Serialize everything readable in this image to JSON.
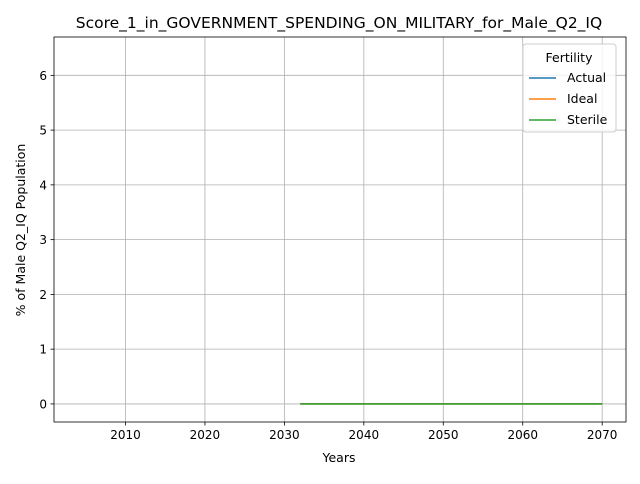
{
  "chart_data": {
    "type": "line",
    "title": "Score_1_in_GOVERNMENT_SPENDING_ON_MILITARY_for_Male_Q2_IQ",
    "xlabel": "Years",
    "ylabel": "% of Male Q2_IQ Population",
    "xlim": [
      2001,
      2073
    ],
    "ylim": [
      -0.33,
      6.7
    ],
    "xticks": [
      2010,
      2020,
      2030,
      2040,
      2050,
      2060,
      2070
    ],
    "yticks": [
      0,
      1,
      2,
      3,
      4,
      5,
      6
    ],
    "grid": true,
    "legend": {
      "title": "Fertility",
      "placement": "top-right"
    },
    "series": [
      {
        "name": "Actual",
        "color": "#1f77b4",
        "x": [
          2032,
          2070
        ],
        "y": [
          0,
          0
        ]
      },
      {
        "name": "Ideal",
        "color": "#ff7f0e",
        "x": [
          2032,
          2070
        ],
        "y": [
          0,
          0
        ]
      },
      {
        "name": "Sterile",
        "color": "#2ca02c",
        "x": [
          2032,
          2070
        ],
        "y": [
          0,
          0
        ]
      }
    ]
  }
}
